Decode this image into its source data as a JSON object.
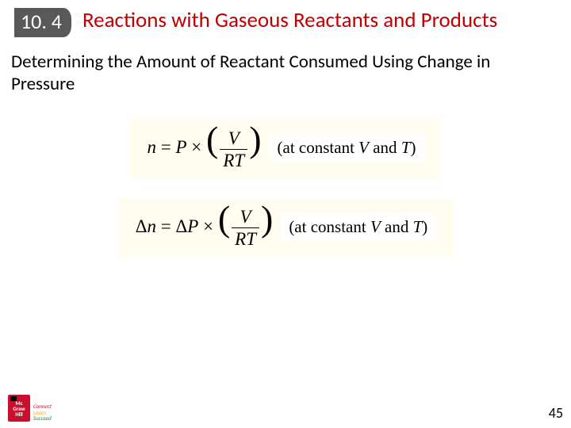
{
  "header": {
    "section_number": "10. 4",
    "title": "Reactions with Gaseous Reactants and Products"
  },
  "subtitle": "Determining the Amount of Reactant Consumed Using Change in Pressure",
  "equations": {
    "eq1": {
      "lhs": "n",
      "eq": " = ",
      "coef": "P",
      "times": " × ",
      "frac_num": "V",
      "frac_den": "RT",
      "annot": "(at constant V and T)"
    },
    "eq2": {
      "lhs": "Δn",
      "eq": " = ",
      "coef": "ΔP",
      "times": " × ",
      "frac_num": "V",
      "frac_den": "RT",
      "annot": "(at constant V and T)"
    }
  },
  "footer": {
    "logo_lines": [
      "Mc",
      "Graw",
      "Hill"
    ],
    "tag_connect": "Connect",
    "tag_learn": "Learn",
    "tag_succeed": "Succeed",
    "page_number": "45"
  },
  "colors": {
    "title": "#c00000",
    "badge_bg": "#595959",
    "eq_bg": "#fffdf0",
    "logo_red": "#c8102e"
  }
}
